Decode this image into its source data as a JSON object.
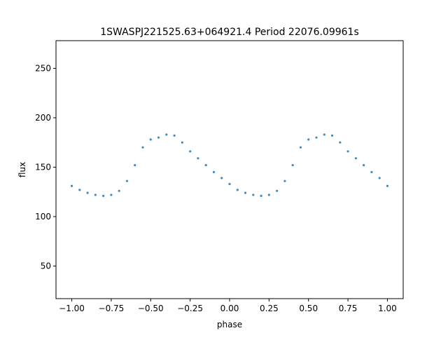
{
  "chart_data": {
    "type": "scatter",
    "title": "1SWASPJ221525.63+064921.4 Period 22076.09961s",
    "xlabel": "phase",
    "ylabel": "flux",
    "xlim": [
      -1.1,
      1.1
    ],
    "ylim": [
      17,
      278
    ],
    "xticks": [
      -1.0,
      -0.75,
      -0.5,
      -0.25,
      0.0,
      0.25,
      0.5,
      0.75,
      1.0
    ],
    "xtick_labels": [
      "−1.00",
      "−0.75",
      "−0.50",
      "−0.25",
      "0.00",
      "0.25",
      "0.50",
      "0.75",
      "1.00"
    ],
    "yticks": [
      50,
      100,
      150,
      200,
      250
    ],
    "ytick_labels": [
      "50",
      "100",
      "150",
      "200",
      "250"
    ],
    "grid": false,
    "marker_color": "#1f77b4",
    "series": [
      {
        "x": [
          -1.0,
          -0.95,
          -0.9,
          -0.85,
          -0.8,
          -0.75,
          -0.7,
          -0.65,
          -0.6,
          -0.55,
          -0.5,
          -0.45,
          -0.4,
          -0.35,
          -0.3,
          -0.25,
          -0.2,
          -0.15,
          -0.1,
          -0.05,
          0.0,
          0.05,
          0.1,
          0.15,
          0.2,
          0.25,
          0.3,
          0.35,
          0.4,
          0.45,
          0.5,
          0.55,
          0.6,
          0.65,
          0.7,
          0.75,
          0.8,
          0.85,
          0.9,
          0.95,
          1.0
        ],
        "y": [
          131,
          127,
          124,
          122,
          121,
          122,
          126,
          136,
          152,
          170,
          178,
          180,
          183,
          182,
          175,
          166,
          159,
          152,
          145,
          139,
          133,
          127,
          124,
          122,
          121,
          122,
          126,
          136,
          152,
          170,
          178,
          180,
          183,
          182,
          175,
          166,
          159,
          152,
          145,
          139,
          131
        ]
      }
    ]
  }
}
